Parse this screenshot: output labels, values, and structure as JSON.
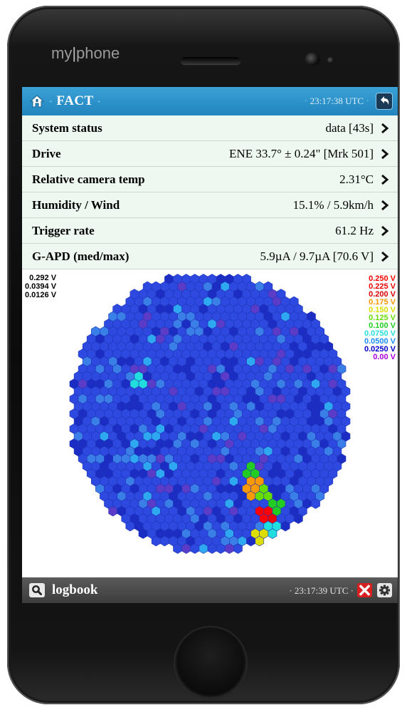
{
  "device": {
    "brand_left": "my",
    "brand_sep": "|",
    "brand_right": "phone"
  },
  "header": {
    "title": "FACT",
    "time": "23:17:38 UTC",
    "icons": [
      "home-icon",
      "back-arrow-icon"
    ]
  },
  "rows": [
    {
      "label": "System status",
      "value": "data [43s]"
    },
    {
      "label": "Drive",
      "value": "ENE 33.7° ± 0.24\" [Mrk 501]"
    },
    {
      "label": "Relative camera temp",
      "value": "2.31°C"
    },
    {
      "label": "Humidity / Wind",
      "value": "15.1% / 5.9km/h"
    },
    {
      "label": "Trigger rate",
      "value": "61.2 Hz"
    },
    {
      "label": "G-APD (med/max)",
      "value": "5.9µA / 9.7µA [70.6 V]"
    }
  ],
  "camera": {
    "stats": [
      "0.292 V",
      "0.0394 V",
      "0.0126 V"
    ],
    "scale": [
      {
        "label": "0.250 V",
        "color": "#ff0000"
      },
      {
        "label": "0.225 V",
        "color": "#ee0000"
      },
      {
        "label": "0.200 V",
        "color": "#dd0000"
      },
      {
        "label": "0.175 V",
        "color": "#ff9900"
      },
      {
        "label": "0.150 V",
        "color": "#dddd00"
      },
      {
        "label": "0.125 V",
        "color": "#66dd00"
      },
      {
        "label": "0.100 V",
        "color": "#22cc22"
      },
      {
        "label": "0.0750 V",
        "color": "#22dddd"
      },
      {
        "label": "0.0500 V",
        "color": "#1a8cff"
      },
      {
        "label": "0.0250 V",
        "color": "#0000cc"
      },
      {
        "label": "0.00 V",
        "color": "#aa00dd"
      }
    ],
    "pixel_colors": {
      "base": "#2d49e0",
      "dark": "#1c2dc4",
      "light": "#3a7ee8",
      "violet": "#5a3cc8",
      "sky": "#2ea8f0"
    }
  },
  "footer": {
    "title": "logbook",
    "time": "23:17:39 UTC",
    "icons": [
      "search-icon",
      "close-icon",
      "gear-icon"
    ]
  }
}
